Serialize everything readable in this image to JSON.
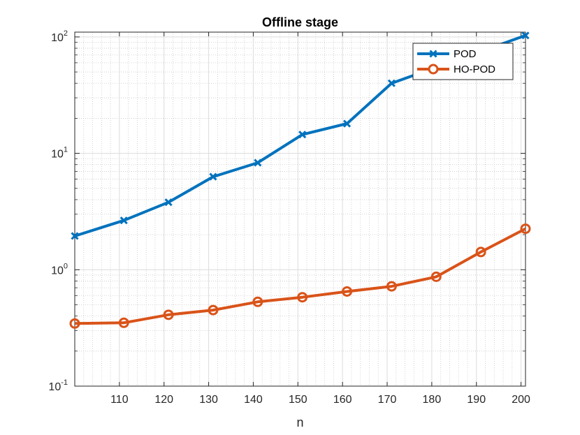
{
  "chart_data": {
    "type": "line",
    "title": "Offline stage",
    "xlabel": "n",
    "ylabel": "",
    "yscale": "log",
    "xlim": [
      100,
      201
    ],
    "ylim": [
      0.1,
      110
    ],
    "x_ticks": [
      "110",
      "120",
      "130",
      "140",
      "150",
      "160",
      "170",
      "180",
      "190",
      "200"
    ],
    "y_ticks": [
      {
        "base": "10",
        "exp": "-1",
        "value": 0.1
      },
      {
        "base": "10",
        "exp": "0",
        "value": 1
      },
      {
        "base": "10",
        "exp": "1",
        "value": 10
      },
      {
        "base": "10",
        "exp": "2",
        "value": 100
      }
    ],
    "grid": true,
    "minor_grid": true,
    "legend_position": "top-right",
    "x": [
      100,
      111,
      121,
      131,
      141,
      151,
      161,
      171,
      181,
      191,
      201
    ],
    "series": [
      {
        "name": "POD",
        "color": "#0072BD",
        "marker": "x",
        "values": [
          1.95,
          2.65,
          3.8,
          6.3,
          8.3,
          14.5,
          18.0,
          40.0,
          55.0,
          75.0,
          103.0
        ]
      },
      {
        "name": "HO-POD",
        "color": "#D95319",
        "marker": "o",
        "values": [
          0.345,
          0.35,
          0.41,
          0.45,
          0.53,
          0.58,
          0.65,
          0.72,
          0.87,
          1.42,
          2.25
        ]
      }
    ]
  }
}
